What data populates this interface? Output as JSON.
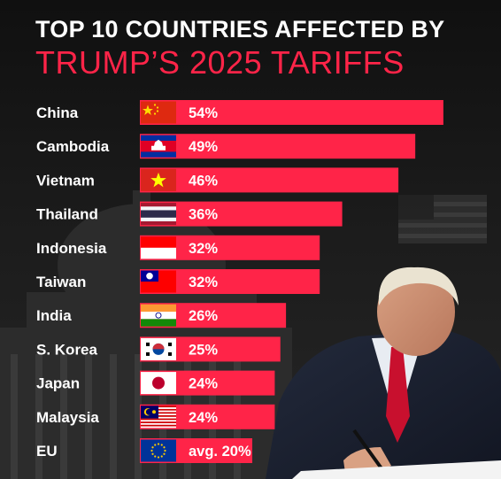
{
  "header": {
    "title_line1": "TOP 10 COUNTRIES AFFECTED BY",
    "title_line2": "TRUMP’S 2025 TARIFFS"
  },
  "colors": {
    "bar": "#ff2448",
    "title_accent": "#ff2448",
    "text": "#ffffff",
    "background": "#151515"
  },
  "chart_data": {
    "type": "bar",
    "orientation": "horizontal",
    "title": "TOP 10 COUNTRIES AFFECTED BY TRUMP’S 2025 TARIFFS",
    "categories": [
      "China",
      "Cambodia",
      "Vietnam",
      "Thailand",
      "Indonesia",
      "Taiwan",
      "India",
      "S. Korea",
      "Japan",
      "Malaysia",
      "EU"
    ],
    "values": [
      54,
      49,
      46,
      36,
      32,
      32,
      26,
      25,
      24,
      24,
      20
    ],
    "value_labels": [
      "54%",
      "49%",
      "46%",
      "36%",
      "32%",
      "32%",
      "26%",
      "25%",
      "24%",
      "24%",
      "avg. 20%"
    ],
    "flags": [
      "china-flag",
      "cambodia-flag",
      "vietnam-flag",
      "thailand-flag",
      "indonesia-flag",
      "taiwan-flag",
      "india-flag",
      "south-korea-flag",
      "japan-flag",
      "malaysia-flag",
      "eu-flag"
    ],
    "unit": "%",
    "grid": false,
    "legend": "none"
  }
}
